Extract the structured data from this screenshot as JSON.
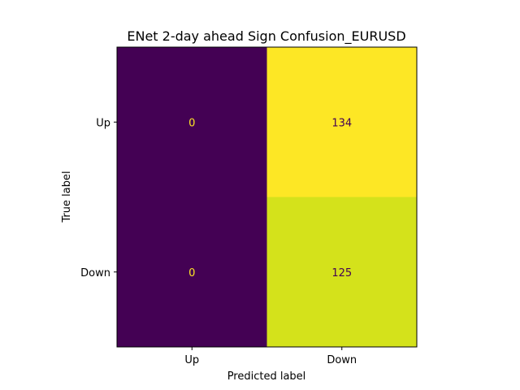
{
  "chart_data": {
    "type": "heatmap",
    "title": "ENet 2-day ahead Sign Confusion_EURUSD",
    "xlabel": "Predicted label",
    "ylabel": "True label",
    "x_categories": [
      "Up",
      "Down"
    ],
    "y_categories": [
      "Up",
      "Down"
    ],
    "values": [
      [
        0,
        134
      ],
      [
        0,
        125
      ]
    ],
    "colormap": "viridis",
    "grid": false,
    "colors": {
      "cell_min": "#440154",
      "cell_mid_high": "#d2e21b",
      "cell_max": "#fde725",
      "text_on_dark": "#fde725",
      "text_on_light": "#440154"
    }
  }
}
